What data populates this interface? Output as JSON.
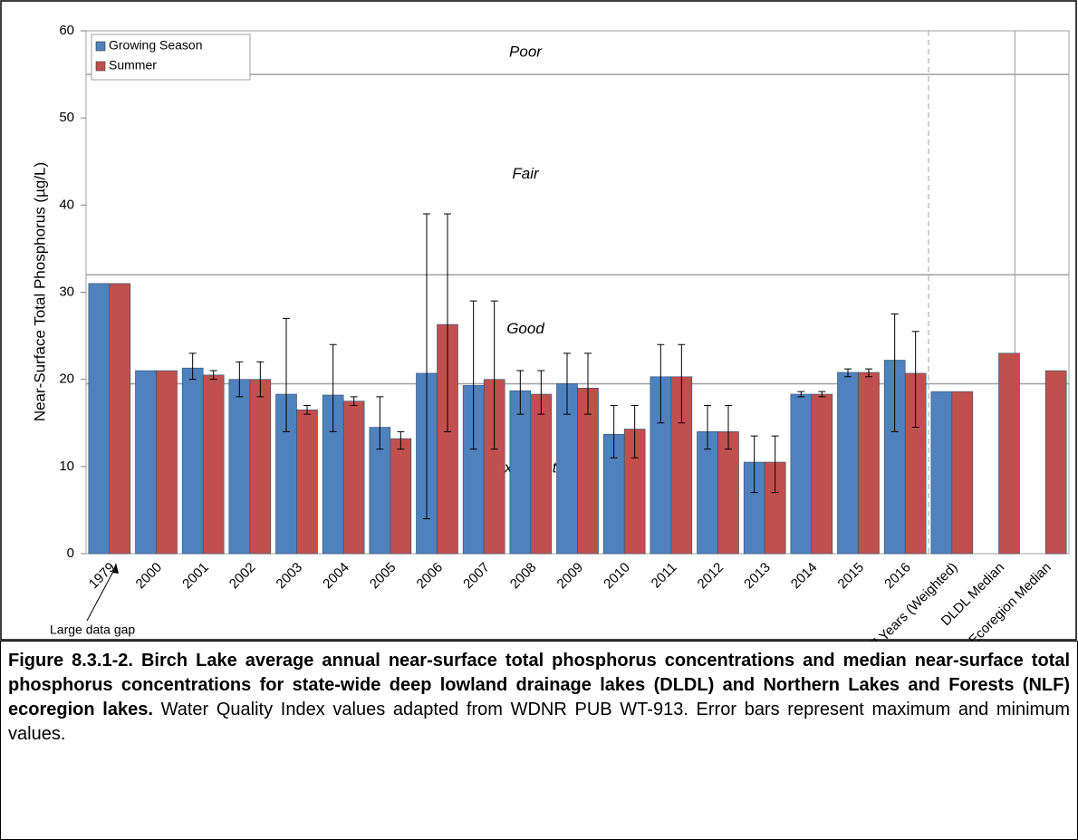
{
  "chart_data": {
    "type": "bar",
    "y_label": "Near-Surface Total Phosphorus (µg/L)",
    "categories": [
      "1979",
      "2000",
      "2001",
      "2002",
      "2003",
      "2004",
      "2005",
      "2006",
      "2007",
      "2008",
      "2009",
      "2010",
      "2011",
      "2012",
      "2013",
      "2014",
      "2015",
      "2016",
      "All Years (Weighted)",
      "DLDL Median",
      "NLF Ecoregion Median"
    ],
    "series": [
      {
        "name": "Growing Season",
        "color": "#4f81bd",
        "values": [
          31,
          21,
          21.3,
          20,
          18.3,
          18.2,
          14.5,
          20.7,
          19.3,
          18.7,
          19.5,
          13.7,
          20.3,
          14,
          10.5,
          18.3,
          20.8,
          22.2,
          18.6,
          null,
          null
        ],
        "err_min": [
          null,
          null,
          20,
          18,
          14,
          14,
          12,
          4,
          12,
          16,
          16,
          11,
          15,
          12,
          7,
          18,
          20.3,
          14,
          null,
          null,
          null
        ],
        "err_max": [
          null,
          null,
          23,
          22,
          27,
          24,
          18,
          39,
          29,
          21,
          23,
          17,
          24,
          17,
          13.5,
          18.6,
          21.2,
          27.5,
          null,
          null,
          null
        ]
      },
      {
        "name": "Summer",
        "color": "#c0504d",
        "values": [
          31,
          21,
          20.5,
          20,
          16.5,
          17.5,
          13.2,
          26.3,
          20,
          18.3,
          19,
          14.3,
          20.3,
          14,
          10.5,
          18.3,
          20.8,
          20.7,
          18.6,
          23,
          21
        ],
        "err_min": [
          null,
          null,
          20,
          18,
          16,
          17,
          12,
          14,
          12,
          16,
          16,
          11,
          15,
          12,
          7,
          18,
          20.3,
          14.5,
          null,
          null,
          null
        ],
        "err_max": [
          null,
          null,
          21,
          22,
          17,
          18,
          14,
          39,
          29,
          21,
          23,
          17,
          24,
          17,
          13.5,
          18.6,
          21.2,
          25.5,
          null,
          null,
          null
        ]
      }
    ],
    "ylim": [
      0,
      60
    ],
    "yticks": [
      0,
      10,
      20,
      30,
      40,
      50,
      60
    ],
    "thresholds": [
      55,
      32,
      19.5
    ],
    "zone_labels": [
      "Poor",
      "Fair",
      "Good",
      "Excellent"
    ],
    "annotation": "Large data gap",
    "legend": "top-left",
    "caption_bold": "Figure 8.3.1-2. Birch Lake average annual near-surface total phosphorus concentrations and median near-surface total phosphorus concentrations for state-wide deep lowland drainage lakes (DLDL) and Northern Lakes and Forests (NLF) ecoregion lakes.",
    "caption_text": "Water Quality Index values adapted from WDNR PUB WT-913.  Error bars represent maximum and minimum values."
  }
}
